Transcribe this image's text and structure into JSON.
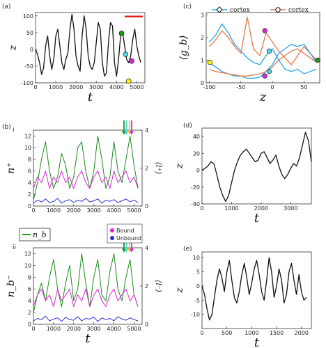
{
  "chart_data": [
    {
      "id": "a",
      "panel_label": "(a)",
      "type": "line",
      "xlabel": "t",
      "ylabel": "z",
      "xlim": [
        0,
        5400
      ],
      "ylim": [
        -100,
        110
      ],
      "xticks": [
        0,
        1000,
        2000,
        3000,
        4000,
        5000
      ],
      "yticks": [
        -100,
        -50,
        0,
        50,
        100
      ],
      "series": [
        {
          "color": "#111111",
          "x": [
            0,
            100,
            200,
            300,
            400,
            500,
            600,
            700,
            800,
            900,
            1000,
            1100,
            1200,
            1300,
            1400,
            1500,
            1600,
            1700,
            1800,
            1900,
            2000,
            2100,
            2200,
            2300,
            2400,
            2500,
            2600,
            2700,
            2800,
            2900,
            3000,
            3100,
            3200,
            3300,
            3400,
            3500,
            3600,
            3700,
            3800,
            3900,
            4000,
            4100,
            4200,
            4300,
            4400,
            4500,
            4600,
            4700,
            4800,
            4900,
            5000,
            5100,
            5200
          ],
          "y": [
            0,
            -15,
            -40,
            -75,
            -55,
            10,
            40,
            -20,
            -60,
            -30,
            40,
            60,
            10,
            -40,
            -60,
            -30,
            -10,
            60,
            105,
            60,
            -20,
            -50,
            -65,
            40,
            100,
            60,
            -20,
            -50,
            -60,
            -40,
            20,
            80,
            60,
            -40,
            -80,
            -70,
            20,
            80,
            70,
            -40,
            -80,
            -30,
            40,
            50,
            10,
            -30,
            -40,
            -20,
            30,
            60,
            10,
            -20,
            -40
          ]
        }
      ],
      "markers": [
        {
          "t": 4250,
          "z": 48,
          "color": "#1a9a1a"
        },
        {
          "t": 4450,
          "z": -15,
          "color": "#4fd8e8"
        },
        {
          "t": 4750,
          "z": -35,
          "color": "#d42ad4"
        },
        {
          "t": 4600,
          "z": -95,
          "color": "#ffee00"
        }
      ],
      "bar": {
        "t0": 4400,
        "t1": 5300,
        "z": 98,
        "color": "#e02020"
      }
    },
    {
      "id": "c",
      "panel_label": "(c)",
      "type": "line",
      "xlabel": "z",
      "ylabel": "⟨g_b⟩",
      "xlim": [
        -105,
        75
      ],
      "ylim": [
        0,
        3.1
      ],
      "xticks": [
        -100,
        -50,
        0,
        50
      ],
      "yticks": [
        0,
        1,
        2,
        3
      ],
      "legend_labels": [
        "cortex",
        "cortex"
      ],
      "series": [
        {
          "color": "#2aa3e8",
          "x": [
            -100,
            -90,
            -80,
            -70,
            -60,
            -50,
            -40,
            -30,
            -20,
            -10,
            0,
            10,
            20,
            30,
            40,
            50,
            60,
            70
          ],
          "y": [
            1.8,
            2.1,
            2.6,
            2.2,
            1.7,
            1.4,
            1.1,
            0.9,
            0.8,
            1.2,
            1.5,
            1.0,
            0.6,
            0.5,
            0.6,
            0.4,
            0.5,
            0.6
          ]
        },
        {
          "color": "#e8784a",
          "x": [
            -100,
            -90,
            -80,
            -70,
            -60,
            -50,
            -40,
            -30,
            -20,
            -10,
            0,
            10,
            20,
            30,
            40,
            50,
            60,
            70
          ],
          "y": [
            1.6,
            1.9,
            2.3,
            2.0,
            1.6,
            1.3,
            2.9,
            1.5,
            1.2,
            2.2,
            1.8,
            1.4,
            1.1,
            0.8,
            1.2,
            1.6,
            1.3,
            1.0
          ]
        },
        {
          "color": "#2aa3e8",
          "x": [
            -100,
            -90,
            -80,
            -70,
            -60,
            -50,
            -40,
            -30,
            -20,
            -10,
            0,
            10,
            20,
            30,
            40,
            50,
            60,
            70
          ],
          "y": [
            0.9,
            0.7,
            0.5,
            0.4,
            0.3,
            0.3,
            0.2,
            0.2,
            0.25,
            0.5,
            0.8,
            1.3,
            1.5,
            1.7,
            1.6,
            1.7,
            1.3,
            0.9
          ]
        },
        {
          "color": "#e8784a",
          "x": [
            -100,
            -90,
            -80,
            -70,
            -60,
            -50,
            -40,
            -30,
            -20,
            -10,
            0,
            10,
            20,
            30,
            40,
            50,
            60,
            70
          ],
          "y": [
            0.6,
            0.5,
            0.45,
            0.4,
            0.35,
            0.3,
            0.3,
            0.35,
            0.4,
            0.5,
            0.7,
            1.0,
            1.2,
            1.4,
            1.5,
            1.3,
            1.1,
            0.9
          ]
        }
      ],
      "markers": [
        {
          "z": -99,
          "g": 0.9,
          "color": "#ffee00"
        },
        {
          "z": -12,
          "g": 2.3,
          "color": "#d42ad4"
        },
        {
          "z": -5,
          "g": 1.4,
          "color": "#4fd8e8"
        },
        {
          "z": -5,
          "g": 0.5,
          "color": "#4fd8e8"
        },
        {
          "z": -12,
          "g": 0.3,
          "color": "#d42ad4"
        },
        {
          "z": 72,
          "g": 1.0,
          "color": "#1a9a1a"
        }
      ]
    },
    {
      "id": "b_i",
      "panel_label": "(b)",
      "sub_label": "i",
      "type": "line",
      "xlabel": "",
      "ylabel": "n⁺",
      "y2label": "⟨l⁺⟩",
      "xlim": [
        0,
        5400
      ],
      "ylim": [
        0,
        13
      ],
      "y2lim": [
        0,
        4
      ],
      "xticks": [
        0,
        1000,
        2000,
        3000,
        4000,
        5000
      ],
      "yticks": [
        0,
        2,
        4,
        6,
        8,
        10,
        12
      ],
      "y2ticks": [
        0,
        2,
        4
      ],
      "series": [
        {
          "color": "#1a8a1a",
          "x": [
            0,
            200,
            400,
            600,
            800,
            1000,
            1200,
            1400,
            1600,
            1800,
            2000,
            2200,
            2400,
            2600,
            2800,
            3000,
            3200,
            3400,
            3600,
            3800,
            4000,
            4200,
            4400,
            4600,
            4800,
            5000,
            5200
          ],
          "y": [
            1,
            4,
            8,
            11,
            6,
            3,
            5,
            9,
            7,
            3,
            5,
            10,
            11,
            6,
            3,
            6,
            12,
            8,
            3,
            5,
            11,
            6,
            4,
            8,
            12,
            7,
            3
          ]
        },
        {
          "color": "#d42ad4",
          "x": [
            0,
            200,
            400,
            600,
            800,
            1000,
            1200,
            1400,
            1600,
            1800,
            2000,
            2200,
            2400,
            2600,
            2800,
            3000,
            3200,
            3400,
            3600,
            3800,
            4000,
            4200,
            4400,
            4600,
            4800,
            5000,
            5200
          ],
          "y": [
            3,
            5,
            4,
            6,
            3,
            5,
            4,
            6,
            4,
            5,
            3,
            5,
            6,
            4,
            3,
            5,
            6,
            4,
            5,
            3,
            6,
            4,
            5,
            6,
            4,
            5,
            3
          ]
        },
        {
          "color": "#2a2ad4",
          "x": [
            0,
            200,
            400,
            600,
            800,
            1000,
            1200,
            1400,
            1600,
            1800,
            2000,
            2200,
            2400,
            2600,
            2800,
            3000,
            3200,
            3400,
            3600,
            3800,
            4000,
            4200,
            4400,
            4600,
            4800,
            5000,
            5200
          ],
          "y": [
            0.5,
            1,
            0.7,
            1.2,
            0.6,
            0.8,
            1.3,
            0.5,
            0.9,
            1.1,
            0.6,
            1,
            0.8,
            1.3,
            0.7,
            0.9,
            1.2,
            0.5,
            1,
            0.8,
            1.1,
            0.6,
            0.9,
            1.2,
            0.7,
            1,
            0.6
          ]
        }
      ],
      "arrows": [
        {
          "t": 4500,
          "color": "#1a9a1a"
        },
        {
          "t": 4620,
          "color": "#4fd8e8"
        },
        {
          "t": 4780,
          "color": "#ffcc00"
        },
        {
          "t": 4880,
          "color": "#d42ad4"
        }
      ]
    },
    {
      "id": "b_ii",
      "panel_label": "",
      "sub_label": "ii",
      "type": "line",
      "xlabel": "t",
      "ylabel": "n_b⁻",
      "y2label": "⟨l⁻⟩",
      "xlim": [
        0,
        5400
      ],
      "ylim": [
        0,
        13
      ],
      "y2lim": [
        0,
        4
      ],
      "xticks": [
        0,
        1000,
        2000,
        3000,
        4000,
        5000
      ],
      "yticks": [
        0,
        2,
        4,
        6,
        8,
        10,
        12
      ],
      "y2ticks": [
        0,
        2,
        4
      ],
      "legend_labels": [
        "n_b",
        "Bound",
        "Unbound"
      ],
      "series": [
        {
          "color": "#1a8a1a",
          "x": [
            0,
            200,
            400,
            600,
            800,
            1000,
            1200,
            1400,
            1600,
            1800,
            2000,
            2200,
            2400,
            2600,
            2800,
            3000,
            3200,
            3400,
            3600,
            3800,
            4000,
            4200,
            4400,
            4600,
            4800,
            5000,
            5200
          ],
          "y": [
            2,
            5,
            7,
            4,
            8,
            11,
            6,
            3,
            7,
            10,
            4,
            6,
            12,
            7,
            3,
            8,
            11,
            5,
            4,
            9,
            12,
            6,
            4,
            8,
            11,
            5,
            3
          ]
        },
        {
          "color": "#d42ad4",
          "x": [
            0,
            200,
            400,
            600,
            800,
            1000,
            1200,
            1400,
            1600,
            1800,
            2000,
            2200,
            2400,
            2600,
            2800,
            3000,
            3200,
            3400,
            3600,
            3800,
            4000,
            4200,
            4400,
            4600,
            4800,
            5000,
            5200
          ],
          "y": [
            3,
            5,
            6,
            4,
            5,
            3,
            6,
            4,
            5,
            6,
            3,
            5,
            4,
            6,
            3,
            5,
            6,
            4,
            3,
            5,
            6,
            4,
            5,
            6,
            4,
            5,
            3
          ]
        },
        {
          "color": "#2a2ad4",
          "x": [
            0,
            200,
            400,
            600,
            800,
            1000,
            1200,
            1400,
            1600,
            1800,
            2000,
            2200,
            2400,
            2600,
            2800,
            3000,
            3200,
            3400,
            3600,
            3800,
            4000,
            4200,
            4400,
            4600,
            4800,
            5000,
            5200
          ],
          "y": [
            0.6,
            1,
            0.8,
            1.4,
            0.6,
            0.9,
            1.1,
            0.5,
            1.2,
            0.8,
            0.7,
            1.3,
            0.6,
            1,
            0.9,
            1.2,
            0.5,
            1.1,
            0.8,
            1,
            0.6,
            1.3,
            0.9,
            0.7,
            1.1,
            0.8,
            0.6
          ]
        }
      ],
      "arrows": [
        {
          "t": 4500,
          "color": "#1a9a1a"
        },
        {
          "t": 4620,
          "color": "#4fd8e8"
        },
        {
          "t": 4780,
          "color": "#ffcc00"
        },
        {
          "t": 4880,
          "color": "#d42ad4"
        }
      ]
    },
    {
      "id": "d",
      "panel_label": "(d)",
      "type": "line",
      "xlabel": "t",
      "ylabel": "z",
      "xlim": [
        0,
        3700
      ],
      "ylim": [
        -40,
        50
      ],
      "xticks": [
        0,
        1000,
        2000,
        3000
      ],
      "yticks": [
        -40,
        -20,
        0,
        20,
        40
      ],
      "series": [
        {
          "color": "#111111",
          "x": [
            0,
            100,
            200,
            300,
            400,
            500,
            600,
            700,
            800,
            900,
            1000,
            1100,
            1200,
            1300,
            1400,
            1500,
            1600,
            1700,
            1800,
            1900,
            2000,
            2100,
            2200,
            2300,
            2400,
            2500,
            2600,
            2700,
            2800,
            2900,
            3000,
            3100,
            3200,
            3300,
            3400,
            3500,
            3600,
            3700
          ],
          "y": [
            0,
            2,
            5,
            10,
            8,
            -5,
            -20,
            -30,
            -37,
            -30,
            -15,
            0,
            10,
            18,
            22,
            25,
            20,
            15,
            10,
            12,
            20,
            22,
            15,
            8,
            12,
            18,
            5,
            -5,
            -10,
            -5,
            2,
            8,
            5,
            15,
            30,
            45,
            35,
            10
          ]
        }
      ]
    },
    {
      "id": "e",
      "panel_label": "(e)",
      "type": "line",
      "xlabel": "t",
      "ylabel": "z",
      "xlim": [
        0,
        2200
      ],
      "ylim": [
        -15,
        12
      ],
      "xticks": [
        0,
        500,
        1000,
        1500,
        2000
      ],
      "yticks": [
        -10,
        -5,
        0,
        5,
        10
      ],
      "series": [
        {
          "color": "#111111",
          "x": [
            0,
            50,
            100,
            150,
            200,
            250,
            300,
            350,
            400,
            450,
            500,
            550,
            600,
            650,
            700,
            750,
            800,
            850,
            900,
            950,
            1000,
            1050,
            1100,
            1150,
            1200,
            1250,
            1300,
            1350,
            1400,
            1450,
            1500,
            1550,
            1600,
            1650,
            1700,
            1750,
            1800,
            1850,
            1900,
            1950,
            2000,
            2050,
            2100
          ],
          "y": [
            0,
            -3,
            -8,
            -12,
            -10,
            -4,
            2,
            6,
            3,
            -2,
            5,
            9,
            2,
            -4,
            -6,
            -2,
            4,
            8,
            3,
            -3,
            1,
            6,
            9,
            4,
            -2,
            -5,
            2,
            10,
            5,
            -4,
            0,
            6,
            2,
            -6,
            -3,
            5,
            8,
            2,
            -3,
            4,
            -2,
            -5,
            -4
          ]
        }
      ]
    }
  ]
}
